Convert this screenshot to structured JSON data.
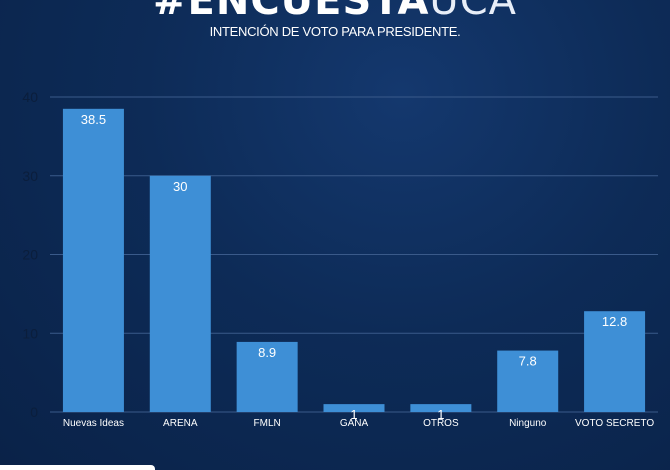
{
  "header": {
    "hashtag_bold": "#ENCUESTA",
    "hashtag_thin": "UCA",
    "subtitle": "INTENCIÓN DE VOTO PARA PRESIDENTE."
  },
  "colors": {
    "bar": "#3e8fd6",
    "background": "#0d2b57",
    "grid": "#3a5a8a",
    "axis_text": "#0b1e3c",
    "bar_label": "#ffffff",
    "category_text": "#ffffff"
  },
  "chart_data": {
    "type": "bar",
    "categories": [
      "Nuevas Ideas",
      "ARENA",
      "FMLN",
      "GANA",
      "OTROS",
      "Ninguno",
      "VOTO SECRETO"
    ],
    "values": [
      38.5,
      30,
      8.9,
      1,
      1,
      7.8,
      12.8
    ],
    "value_labels": [
      "38.5",
      "30",
      "8.9",
      "1",
      "1",
      "7.8",
      "12.8"
    ],
    "yticks": [
      "0",
      "10",
      "20",
      "30",
      "40"
    ],
    "ylim": [
      0,
      40
    ],
    "grid": true,
    "legend": "none"
  }
}
